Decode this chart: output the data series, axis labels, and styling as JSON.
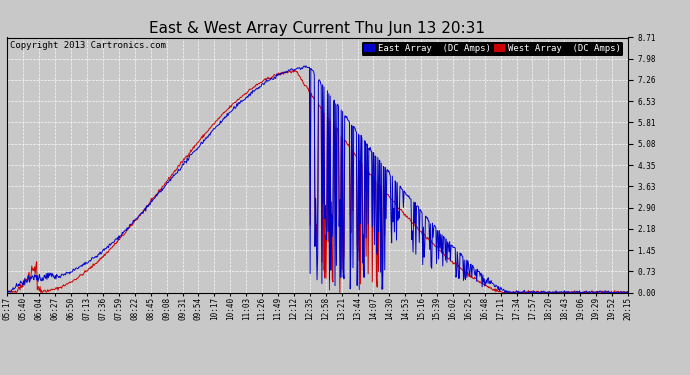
{
  "title": "East & West Array Current Thu Jun 13 20:31",
  "copyright": "Copyright 2013 Cartronics.com",
  "legend_east": "East Array  (DC Amps)",
  "legend_west": "West Array  (DC Amps)",
  "east_color": "#0000CC",
  "west_color": "#CC0000",
  "background_color": "#C8C8C8",
  "plot_bg_color": "#C8C8C8",
  "ylim": [
    0,
    8.71
  ],
  "yticks": [
    0.0,
    0.73,
    1.45,
    2.18,
    2.9,
    3.63,
    4.35,
    5.08,
    5.81,
    6.53,
    7.26,
    7.98,
    8.71
  ],
  "xtick_labels": [
    "05:17",
    "05:40",
    "06:04",
    "06:27",
    "06:50",
    "07:13",
    "07:36",
    "07:59",
    "08:22",
    "08:45",
    "09:08",
    "09:31",
    "09:54",
    "10:17",
    "10:40",
    "11:03",
    "11:26",
    "11:49",
    "12:12",
    "12:35",
    "12:58",
    "13:21",
    "13:44",
    "14:07",
    "14:30",
    "14:53",
    "15:16",
    "15:39",
    "16:02",
    "16:25",
    "16:48",
    "17:11",
    "17:34",
    "17:57",
    "18:20",
    "18:43",
    "19:06",
    "19:29",
    "19:52",
    "20:15"
  ],
  "title_fontsize": 11,
  "tick_fontsize": 5.5,
  "copyright_fontsize": 6.5,
  "legend_fontsize": 6.5,
  "line_width": 0.7
}
